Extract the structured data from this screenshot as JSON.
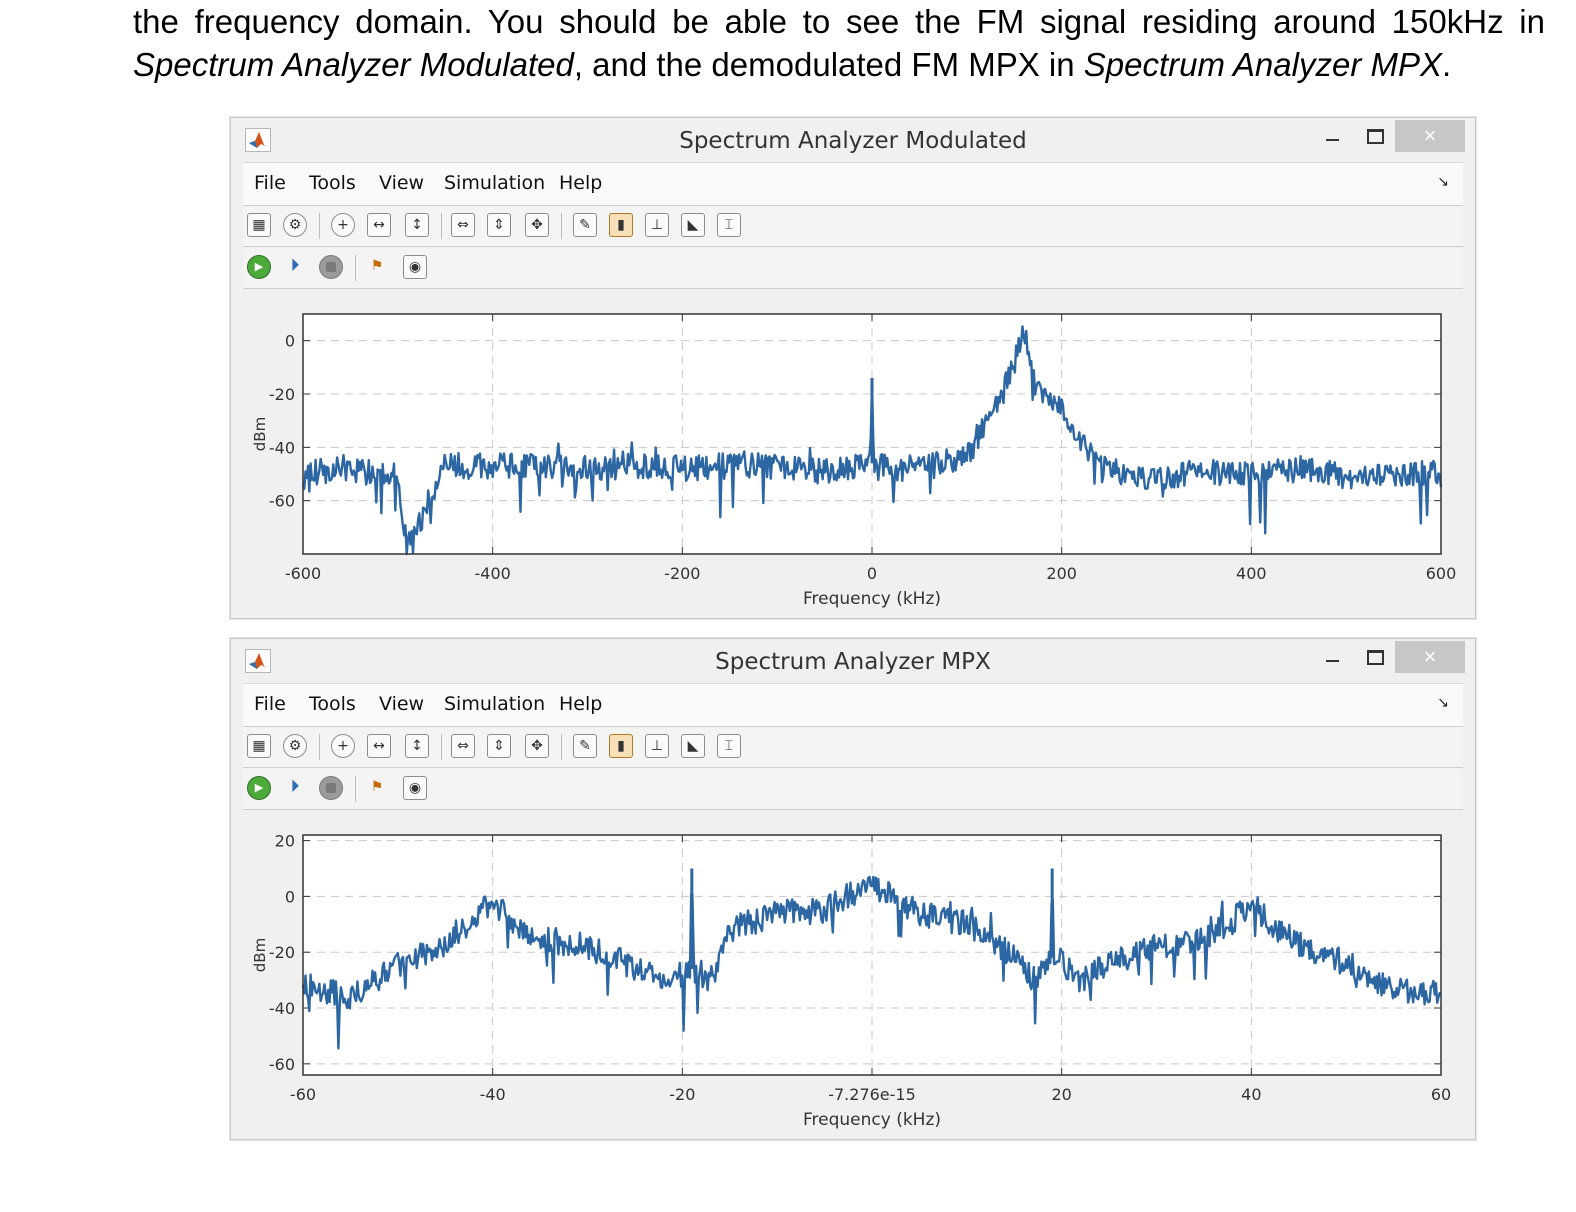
{
  "document": {
    "line1": "the frequency domain. You should be able to see the FM signal residing around 150kHz in",
    "line2_em1": "Spectrum Analyzer Modulated",
    "line2_mid": ", and the demodulated FM MPX in ",
    "line2_em2": "Spectrum Analyzer MPX",
    "line2_end": "."
  },
  "menu": {
    "file": "File",
    "tools": "Tools",
    "view": "View",
    "simulation": "Simulation",
    "help": "Help"
  },
  "icons": {
    "toolbar1": [
      "configuration-icon",
      "gear-icon",
      "zoom-in-icon",
      "zoom-x-icon",
      "zoom-y-icon",
      "scale-x-icon",
      "scale-y-icon",
      "autoscale-icon",
      "measure-icon",
      "peak-finder-icon",
      "channel-measure-icon",
      "distortion-icon",
      "cursor-icon"
    ],
    "toolbar2": [
      "run-icon",
      "step-forward-icon",
      "stop-icon",
      "highlight-icon",
      "snapshot-icon"
    ]
  },
  "windows": {
    "modulated": {
      "title": "Spectrum Analyzer Modulated",
      "close_glyph": "×",
      "chart_data": {
        "type": "line",
        "xlabel": "Frequency (kHz)",
        "ylabel": "dBm",
        "xlim": [
          -600,
          600
        ],
        "ylim": [
          -80,
          10
        ],
        "xticks": [
          -600,
          -400,
          -200,
          0,
          200,
          400,
          600
        ],
        "xtick_labels": [
          "-600",
          "-400",
          "-200",
          "0",
          "200",
          "400",
          "600"
        ],
        "yticks": [
          0,
          -20,
          -40,
          -60
        ],
        "ytick_labels": [
          "0",
          "-20",
          "-40",
          "-60"
        ],
        "grid": true,
        "color": "#2c66a3",
        "x": [
          -600,
          -550,
          -500,
          -490,
          -450,
          -400,
          -350,
          -300,
          -250,
          -200,
          -150,
          -100,
          -50,
          -2,
          0,
          2,
          50,
          100,
          120,
          140,
          150,
          160,
          170,
          180,
          200,
          220,
          240,
          260,
          280,
          300,
          350,
          400,
          450,
          500,
          550,
          600
        ],
        "values": [
          -50,
          -48,
          -51,
          -78,
          -47,
          -47,
          -47,
          -48,
          -47,
          -48,
          -47,
          -47,
          -49,
          -46,
          -14,
          -47,
          -48,
          -44,
          -30,
          -18,
          -8,
          4,
          -15,
          -21,
          -25,
          -39,
          -46,
          -50,
          -51,
          -52,
          -49,
          -50,
          -48,
          -51,
          -50,
          -50
        ]
      }
    },
    "mpx": {
      "title": "Spectrum Analyzer MPX",
      "close_glyph": "×",
      "chart_data": {
        "type": "line",
        "xlabel": "Frequency (kHz)",
        "ylabel": "dBm",
        "xlim": [
          -60,
          60
        ],
        "ylim": [
          -64,
          22
        ],
        "xticks": [
          -60,
          -40,
          -20,
          0,
          20,
          40,
          60
        ],
        "xtick_labels": [
          "-60",
          "-40",
          "-20",
          "-7.276e-15",
          "20",
          "40",
          "60"
        ],
        "yticks": [
          20,
          0,
          -20,
          -40,
          -60
        ],
        "ytick_labels": [
          "20",
          "0",
          "-20",
          "-40",
          "-60"
        ],
        "grid": true,
        "color": "#2c66a3",
        "x": [
          -60,
          -55,
          -50,
          -45,
          -42,
          -40,
          -38,
          -35,
          -30,
          -24,
          -22,
          -19.2,
          -19,
          -18.8,
          -17,
          -15,
          -10,
          -5,
          0,
          5,
          10,
          15,
          17,
          18.8,
          19,
          19.2,
          22,
          25,
          30,
          35,
          38,
          40,
          42,
          45,
          50,
          55,
          60
        ],
        "values": [
          -32,
          -36,
          -25,
          -16,
          -8,
          -2,
          -9,
          -15,
          -18,
          -27,
          -32,
          -26,
          10,
          -26,
          -30,
          -12,
          -6,
          -5,
          5,
          -6,
          -10,
          -22,
          -30,
          -22,
          10,
          -22,
          -30,
          -24,
          -18,
          -15,
          -9,
          -2,
          -10,
          -17,
          -24,
          -34,
          -35
        ]
      }
    }
  }
}
